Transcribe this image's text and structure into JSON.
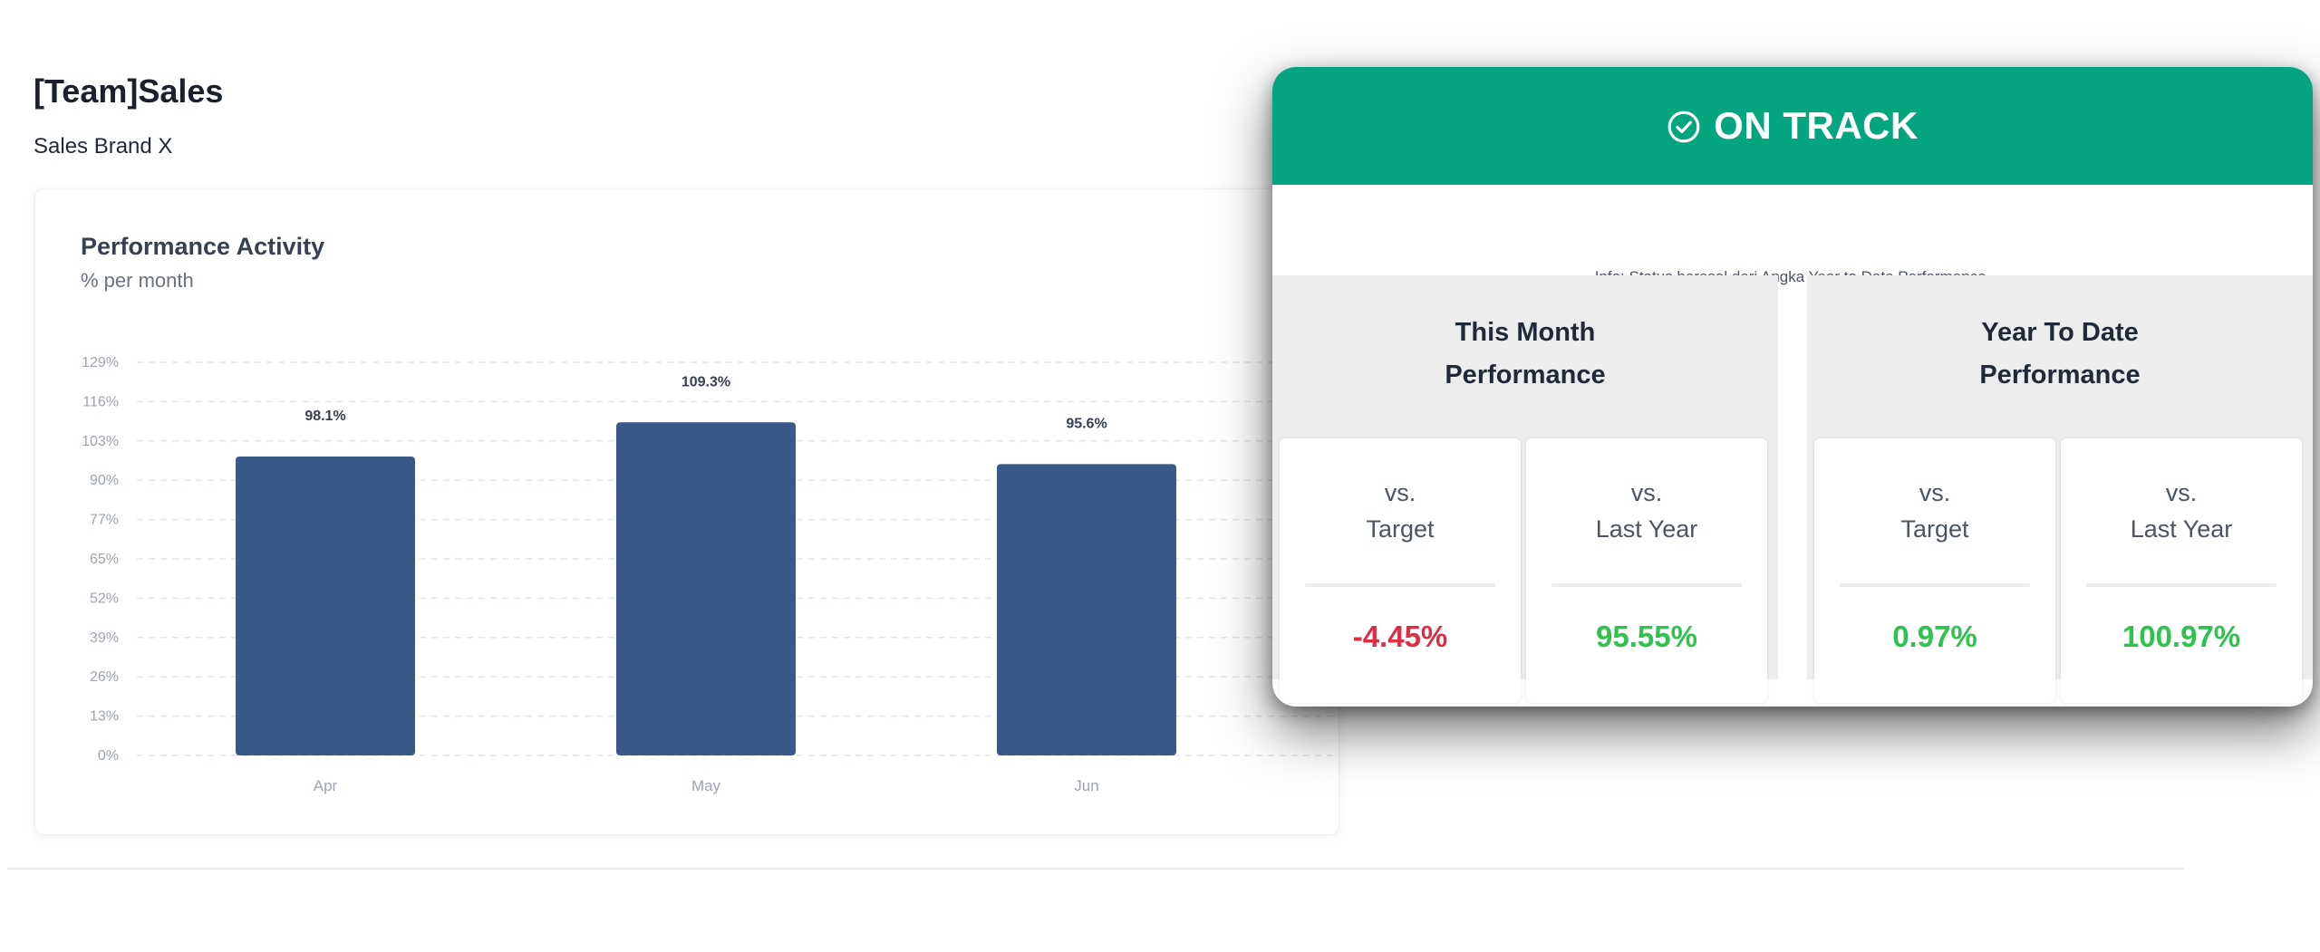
{
  "header": {
    "title": "[Team]Sales",
    "subtitle": "Sales Brand X"
  },
  "chart_card": {
    "title": "Performance Activity",
    "subtitle": "% per month",
    "bar_color": "#3b5988"
  },
  "chart_data": {
    "type": "bar",
    "categories": [
      "Apr",
      "May",
      "Jun"
    ],
    "values": [
      98.1,
      109.3,
      95.6
    ],
    "data_labels": [
      "98.1%",
      "109.3%",
      "95.6%"
    ],
    "y_ticks": [
      "0%",
      "13%",
      "26%",
      "39%",
      "52%",
      "65%",
      "77%",
      "90%",
      "103%",
      "116%",
      "129%"
    ],
    "ylim": [
      0,
      129
    ],
    "grid": true,
    "title": "Performance Activity",
    "subtitle": "% per month"
  },
  "status_panel": {
    "icon": "check-circle-icon",
    "status": "ON TRACK",
    "status_color": "#05a57f",
    "info": "Info: Status berasal dari Angka Year to Date Performance.",
    "groups": [
      {
        "title_line1": "This Month",
        "title_line2": "Performance",
        "cards": [
          {
            "label_line1": "vs.",
            "label_line2": "Target",
            "value": "-4.45%",
            "tone": "negative"
          },
          {
            "label_line1": "vs.",
            "label_line2": "Last Year",
            "value": "95.55%",
            "tone": "positive"
          }
        ]
      },
      {
        "title_line1": "Year To Date",
        "title_line2": "Performance",
        "cards": [
          {
            "label_line1": "vs.",
            "label_line2": "Target",
            "value": "0.97%",
            "tone": "positive"
          },
          {
            "label_line1": "vs.",
            "label_line2": "Last Year",
            "value": "100.97%",
            "tone": "positive"
          }
        ]
      }
    ]
  }
}
